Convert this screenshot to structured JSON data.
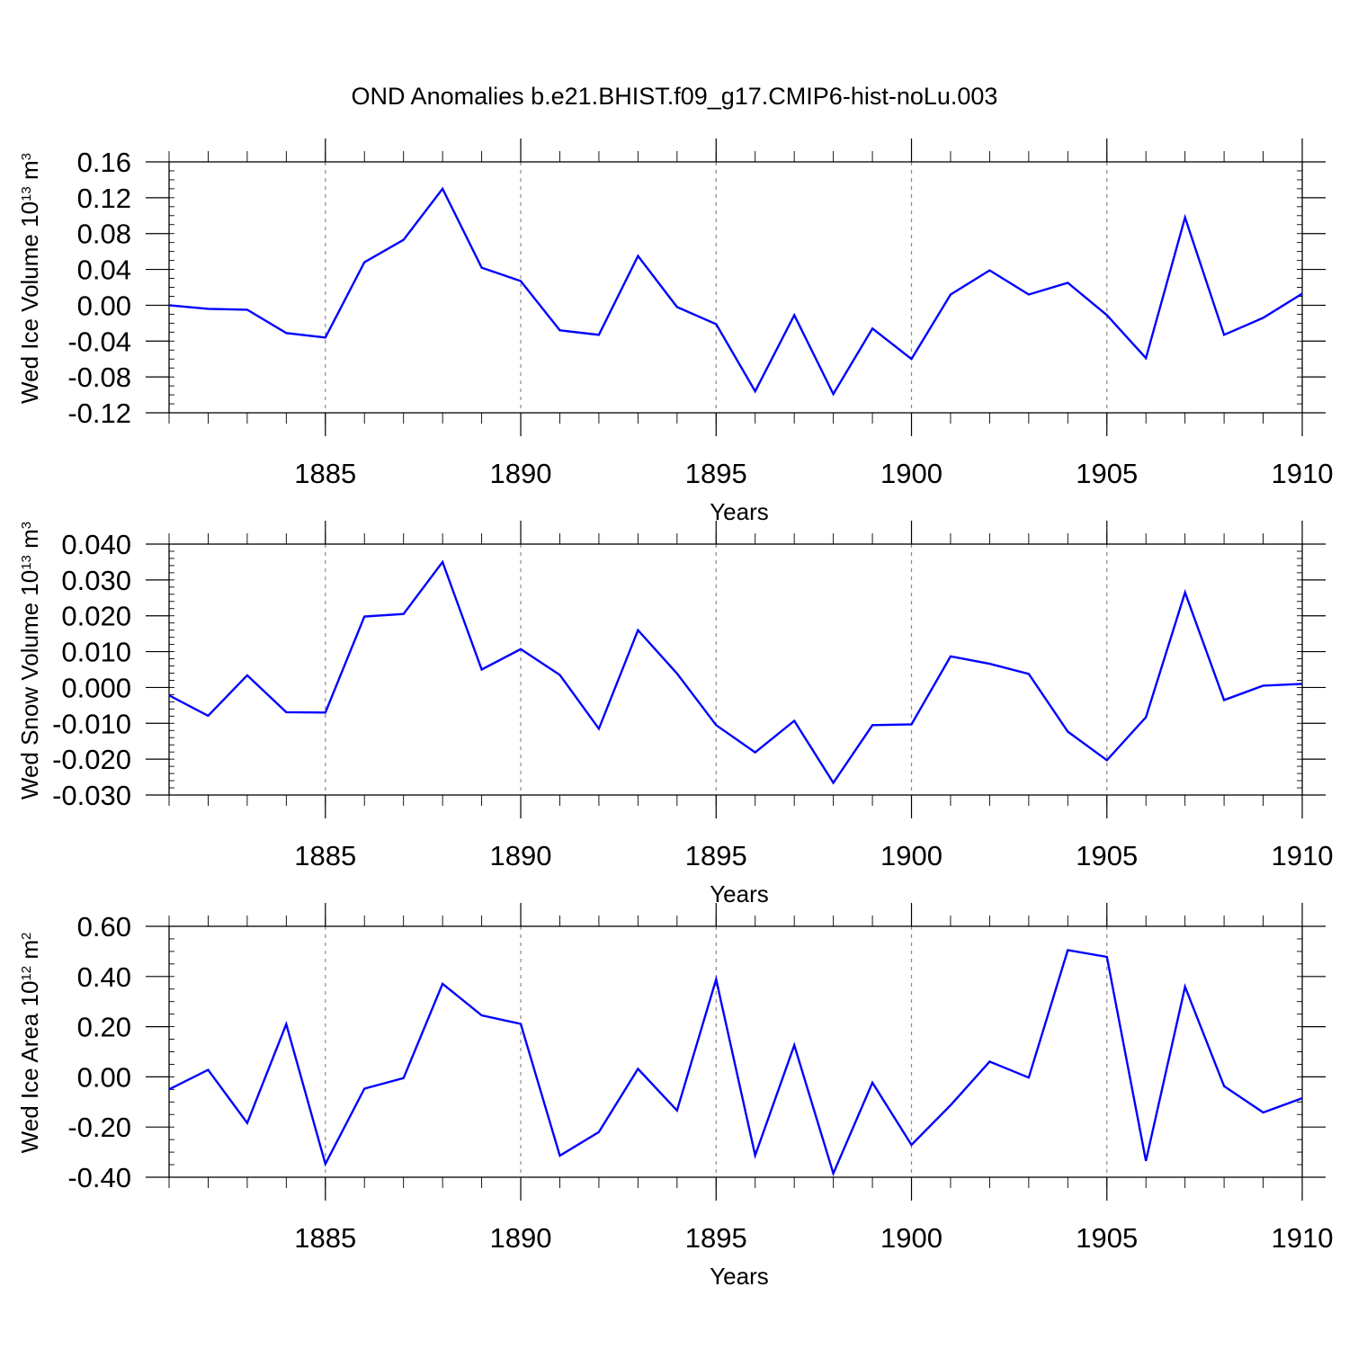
{
  "figure": {
    "title": "OND Anomalies b.e21.BHIST.f09_g17.CMIP6-hist-noLu.003",
    "line_color": "#0000ff"
  },
  "chart_data": [
    {
      "type": "line",
      "title": "",
      "xlabel": "Years",
      "ylabel": {
        "main": "Wed Ice Volume 10",
        "exp": "13",
        "unit": " m",
        "unit_exp": "3"
      },
      "xlim": [
        1881,
        1910
      ],
      "ylim": [
        -0.12,
        0.16
      ],
      "xticks": [
        1885,
        1890,
        1895,
        1900,
        1905,
        1910
      ],
      "xtick_labels": [
        "1885",
        "1890",
        "1895",
        "1900",
        "1905",
        "1910"
      ],
      "yticks": [
        -0.12,
        -0.08,
        -0.04,
        0.0,
        0.04,
        0.08,
        0.12,
        0.16
      ],
      "ytick_labels": [
        "-0.12",
        "-0.08",
        "-0.04",
        "0.00",
        "0.04",
        "0.08",
        "0.12",
        "0.16"
      ],
      "y_minor_step": 0.01,
      "grid": "vertical dashed at major x ticks",
      "x": [
        1881,
        1882,
        1883,
        1884,
        1885,
        1886,
        1887,
        1888,
        1889,
        1890,
        1891,
        1892,
        1893,
        1894,
        1895,
        1896,
        1897,
        1898,
        1899,
        1900,
        1901,
        1902,
        1903,
        1904,
        1905,
        1906,
        1907,
        1908,
        1909,
        1910
      ],
      "y": [
        0.0,
        -0.004,
        -0.005,
        -0.031,
        -0.036,
        0.048,
        0.073,
        0.13,
        0.042,
        0.027,
        -0.028,
        -0.033,
        0.055,
        -0.002,
        -0.021,
        -0.096,
        -0.011,
        -0.099,
        -0.026,
        -0.06,
        0.012,
        0.039,
        0.012,
        0.025,
        -0.011,
        -0.059,
        0.098,
        -0.033,
        -0.014,
        0.013
      ]
    },
    {
      "type": "line",
      "title": "",
      "xlabel": "Years",
      "ylabel": {
        "main": "Wed Snow Volume 10",
        "exp": "13",
        "unit": " m",
        "unit_exp": "3"
      },
      "xlim": [
        1881,
        1910
      ],
      "ylim": [
        -0.03,
        0.04
      ],
      "xticks": [
        1885,
        1890,
        1895,
        1900,
        1905,
        1910
      ],
      "xtick_labels": [
        "1885",
        "1890",
        "1895",
        "1900",
        "1905",
        "1910"
      ],
      "yticks": [
        -0.03,
        -0.02,
        -0.01,
        0.0,
        0.01,
        0.02,
        0.03,
        0.04
      ],
      "ytick_labels": [
        "-0.030",
        "-0.020",
        "-0.010",
        "0.000",
        "0.010",
        "0.020",
        "0.030",
        "0.040"
      ],
      "y_minor_step": 0.002,
      "grid": "vertical dashed at major x ticks",
      "x": [
        1881,
        1882,
        1883,
        1884,
        1885,
        1886,
        1887,
        1888,
        1889,
        1890,
        1891,
        1892,
        1893,
        1894,
        1895,
        1896,
        1897,
        1898,
        1899,
        1900,
        1901,
        1902,
        1903,
        1904,
        1905,
        1906,
        1907,
        1908,
        1909,
        1910
      ],
      "y": [
        -0.0022,
        -0.0079,
        0.0034,
        -0.0069,
        -0.007,
        0.0198,
        0.0205,
        0.035,
        0.005,
        0.0107,
        0.0035,
        -0.0115,
        0.016,
        0.0039,
        -0.0105,
        -0.0181,
        -0.0093,
        -0.0266,
        -0.0105,
        -0.0103,
        0.0087,
        0.0066,
        0.0038,
        -0.0123,
        -0.0203,
        -0.0083,
        0.0265,
        -0.0035,
        0.0005,
        0.001
      ]
    },
    {
      "type": "line",
      "title": "",
      "xlabel": "Years",
      "ylabel": {
        "main": "Wed Ice Area 10",
        "exp": "12",
        "unit": " m",
        "unit_exp": "2"
      },
      "xlim": [
        1881,
        1910
      ],
      "ylim": [
        -0.4,
        0.6
      ],
      "xticks": [
        1885,
        1890,
        1895,
        1900,
        1905,
        1910
      ],
      "xtick_labels": [
        "1885",
        "1890",
        "1895",
        "1900",
        "1905",
        "1910"
      ],
      "yticks": [
        -0.4,
        -0.2,
        0.0,
        0.2,
        0.4,
        0.6
      ],
      "ytick_labels": [
        "-0.40",
        "-0.20",
        "0.00",
        "0.20",
        "0.40",
        "0.60"
      ],
      "y_minor_step": 0.05,
      "grid": "vertical dashed at major x ticks",
      "x": [
        1881,
        1882,
        1883,
        1884,
        1885,
        1886,
        1887,
        1888,
        1889,
        1890,
        1891,
        1892,
        1893,
        1894,
        1895,
        1896,
        1897,
        1898,
        1899,
        1900,
        1901,
        1902,
        1903,
        1904,
        1905,
        1906,
        1907,
        1908,
        1909,
        1910
      ],
      "y": [
        -0.05,
        0.028,
        -0.184,
        0.21,
        -0.347,
        -0.047,
        -0.005,
        0.371,
        0.245,
        0.211,
        -0.314,
        -0.22,
        0.032,
        -0.134,
        0.389,
        -0.313,
        0.126,
        -0.385,
        -0.023,
        -0.271,
        -0.113,
        0.061,
        -0.003,
        0.505,
        0.478,
        -0.335,
        0.359,
        -0.037,
        -0.142,
        -0.085
      ]
    }
  ]
}
